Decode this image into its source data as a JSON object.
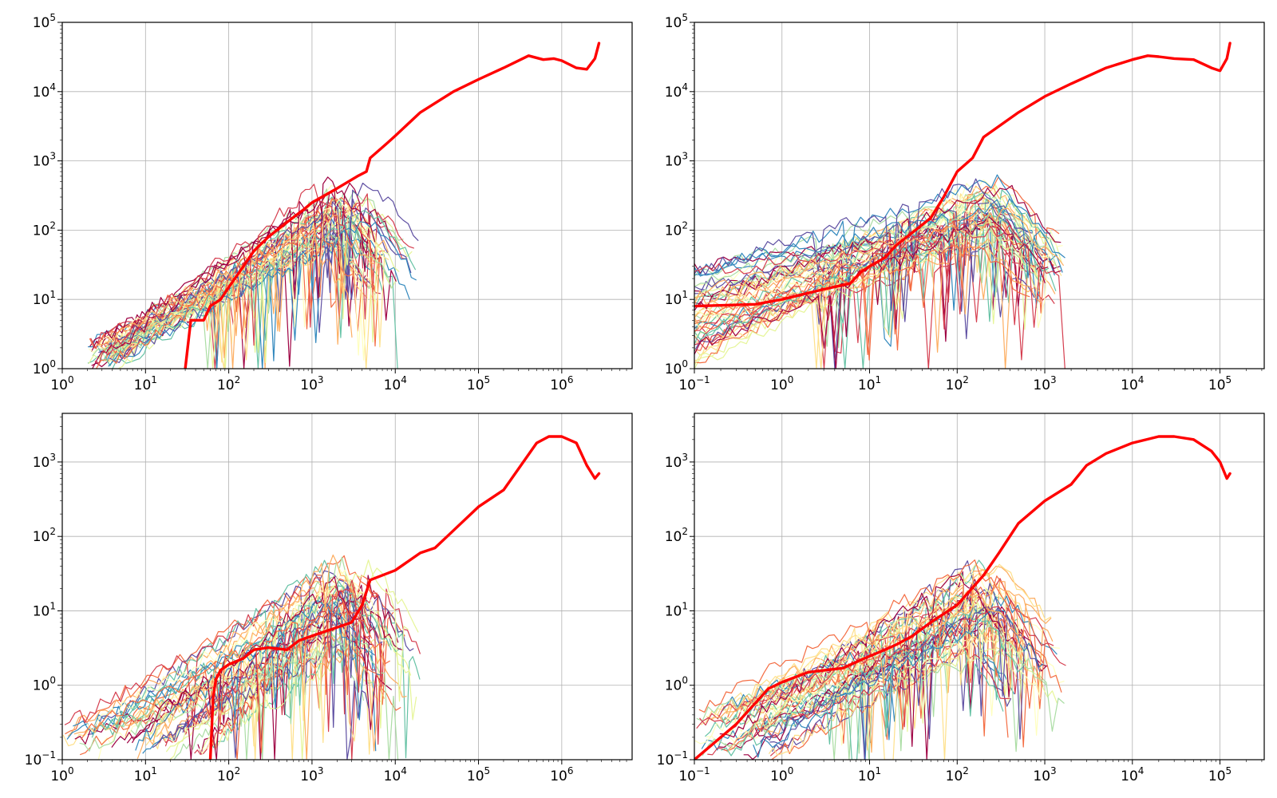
{
  "colors": {
    "highlight": "#ff0000",
    "palette": [
      "#9e0142",
      "#d53e4f",
      "#f46d43",
      "#fdae61",
      "#fee08b",
      "#ffffbf",
      "#e6f598",
      "#abdda4",
      "#66c2a5",
      "#3288bd",
      "#5e4fa2"
    ]
  },
  "chart_data": [
    {
      "type": "line",
      "x_scale": "log",
      "y_scale": "log",
      "xlim": [
        1,
        7000000
      ],
      "ylim": [
        1,
        100000
      ],
      "xticks": [
        {
          "base": "10",
          "exp": "0"
        },
        {
          "base": "10",
          "exp": "1"
        },
        {
          "base": "10",
          "exp": "2"
        },
        {
          "base": "10",
          "exp": "3"
        },
        {
          "base": "10",
          "exp": "4"
        },
        {
          "base": "10",
          "exp": "5"
        },
        {
          "base": "10",
          "exp": "6"
        }
      ],
      "yticks": [
        {
          "base": "10",
          "exp": "0"
        },
        {
          "base": "10",
          "exp": "1"
        },
        {
          "base": "10",
          "exp": "2"
        },
        {
          "base": "10",
          "exp": "3"
        },
        {
          "base": "10",
          "exp": "4"
        },
        {
          "base": "10",
          "exp": "5"
        }
      ],
      "grid": true,
      "highlight_series": {
        "x": [
          30,
          35,
          50,
          60,
          80,
          100,
          150,
          200,
          300,
          500,
          800,
          1000,
          2000,
          3500,
          4500,
          5000,
          8000,
          10000,
          20000,
          50000,
          100000,
          200000,
          400000,
          600000,
          800000,
          1000000,
          1500000,
          2000000,
          2500000,
          2800000
        ],
        "y": [
          1,
          5,
          5,
          8,
          10,
          15,
          30,
          50,
          80,
          130,
          200,
          250,
          400,
          600,
          700,
          1100,
          1800,
          2300,
          5000,
          10000,
          15000,
          22000,
          33000,
          29000,
          30000,
          28000,
          22000,
          21000,
          30000,
          50000
        ]
      },
      "background_series": {
        "count": 48,
        "x_start_range": [
          2,
          5
        ],
        "x_end_range": [
          3000,
          20000
        ],
        "y_start_range": [
          1,
          2.5
        ],
        "y_peak_range": [
          50,
          550
        ],
        "dip_min": 1
      }
    },
    {
      "type": "line",
      "x_scale": "log",
      "y_scale": "log",
      "xlim": [
        0.1,
        320000
      ],
      "ylim": [
        1,
        100000
      ],
      "xticks": [
        {
          "base": "10",
          "exp": "−1"
        },
        {
          "base": "10",
          "exp": "0"
        },
        {
          "base": "10",
          "exp": "1"
        },
        {
          "base": "10",
          "exp": "2"
        },
        {
          "base": "10",
          "exp": "3"
        },
        {
          "base": "10",
          "exp": "4"
        },
        {
          "base": "10",
          "exp": "5"
        }
      ],
      "yticks": [
        {
          "base": "10",
          "exp": "0"
        },
        {
          "base": "10",
          "exp": "1"
        },
        {
          "base": "10",
          "exp": "2"
        },
        {
          "base": "10",
          "exp": "3"
        },
        {
          "base": "10",
          "exp": "4"
        },
        {
          "base": "10",
          "exp": "5"
        }
      ],
      "grid": true,
      "highlight_series": {
        "x": [
          0.1,
          0.5,
          1,
          3,
          6,
          8,
          10,
          15,
          20,
          30,
          50,
          70,
          100,
          150,
          200,
          500,
          1000,
          2000,
          5000,
          10000,
          15000,
          20000,
          30000,
          50000,
          80000,
          100000,
          120000,
          130000
        ],
        "y": [
          8,
          8.5,
          10,
          14,
          17,
          25,
          30,
          40,
          60,
          90,
          150,
          300,
          700,
          1100,
          2200,
          5000,
          8500,
          13000,
          22000,
          29000,
          33000,
          32000,
          30000,
          29000,
          22000,
          20000,
          30000,
          50000
        ]
      },
      "background_series": {
        "count": 48,
        "x_start_range": [
          0.1,
          0.1
        ],
        "x_end_range": [
          600,
          1800
        ],
        "y_start_range": [
          1,
          28
        ],
        "y_peak_range": [
          50,
          550
        ],
        "dip_min": 1
      }
    },
    {
      "type": "line",
      "x_scale": "log",
      "y_scale": "log",
      "xlim": [
        1,
        7000000
      ],
      "ylim": [
        0.1,
        4500
      ],
      "xticks": [
        {
          "base": "10",
          "exp": "0"
        },
        {
          "base": "10",
          "exp": "1"
        },
        {
          "base": "10",
          "exp": "2"
        },
        {
          "base": "10",
          "exp": "3"
        },
        {
          "base": "10",
          "exp": "4"
        },
        {
          "base": "10",
          "exp": "5"
        },
        {
          "base": "10",
          "exp": "6"
        }
      ],
      "yticks": [
        {
          "base": "10",
          "exp": "−1"
        },
        {
          "base": "10",
          "exp": "0"
        },
        {
          "base": "10",
          "exp": "1"
        },
        {
          "base": "10",
          "exp": "2"
        },
        {
          "base": "10",
          "exp": "3"
        }
      ],
      "grid": true,
      "highlight_series": {
        "x": [
          60,
          65,
          70,
          80,
          100,
          150,
          200,
          300,
          500,
          700,
          1000,
          2000,
          3000,
          4000,
          5000,
          10000,
          20000,
          30000,
          50000,
          100000,
          200000,
          300000,
          500000,
          700000,
          1000000,
          1500000,
          2000000,
          2500000,
          2800000
        ],
        "y": [
          0.1,
          0.7,
          1.2,
          1.6,
          1.9,
          2.3,
          3,
          3.2,
          3,
          4,
          4.6,
          6,
          7,
          12,
          26,
          35,
          60,
          70,
          120,
          250,
          420,
          800,
          1800,
          2200,
          2200,
          1800,
          900,
          600,
          700
        ]
      },
      "background_series": {
        "count": 48,
        "x_start_range": [
          1,
          60
        ],
        "x_end_range": [
          3000,
          20000
        ],
        "y_start_range": [
          0.1,
          0.3
        ],
        "y_peak_range": [
          3,
          50
        ],
        "dip_min": 0.1
      }
    },
    {
      "type": "line",
      "x_scale": "log",
      "y_scale": "log",
      "xlim": [
        0.1,
        320000
      ],
      "ylim": [
        0.1,
        4500
      ],
      "xticks": [
        {
          "base": "10",
          "exp": "−1"
        },
        {
          "base": "10",
          "exp": "0"
        },
        {
          "base": "10",
          "exp": "1"
        },
        {
          "base": "10",
          "exp": "2"
        },
        {
          "base": "10",
          "exp": "3"
        },
        {
          "base": "10",
          "exp": "4"
        },
        {
          "base": "10",
          "exp": "5"
        }
      ],
      "yticks": [
        {
          "base": "10",
          "exp": "−1"
        },
        {
          "base": "10",
          "exp": "0"
        },
        {
          "base": "10",
          "exp": "1"
        },
        {
          "base": "10",
          "exp": "2"
        },
        {
          "base": "10",
          "exp": "3"
        }
      ],
      "grid": true,
      "highlight_series": {
        "x": [
          0.1,
          0.3,
          0.7,
          1,
          2,
          5,
          8,
          15,
          20,
          30,
          50,
          100,
          200,
          300,
          500,
          1000,
          2000,
          3000,
          5000,
          10000,
          20000,
          30000,
          50000,
          80000,
          100000,
          120000,
          130000
        ],
        "y": [
          0.1,
          0.3,
          0.9,
          1.1,
          1.5,
          1.7,
          2.2,
          3,
          3.5,
          4.5,
          7,
          12,
          30,
          60,
          150,
          300,
          500,
          900,
          1300,
          1800,
          2200,
          2200,
          2000,
          1400,
          1000,
          600,
          700
        ]
      },
      "background_series": {
        "count": 48,
        "x_start_range": [
          0.1,
          0.8
        ],
        "x_end_range": [
          300,
          1800
        ],
        "y_start_range": [
          0.1,
          0.5
        ],
        "y_peak_range": [
          3,
          50
        ],
        "dip_min": 0.1
      }
    }
  ]
}
